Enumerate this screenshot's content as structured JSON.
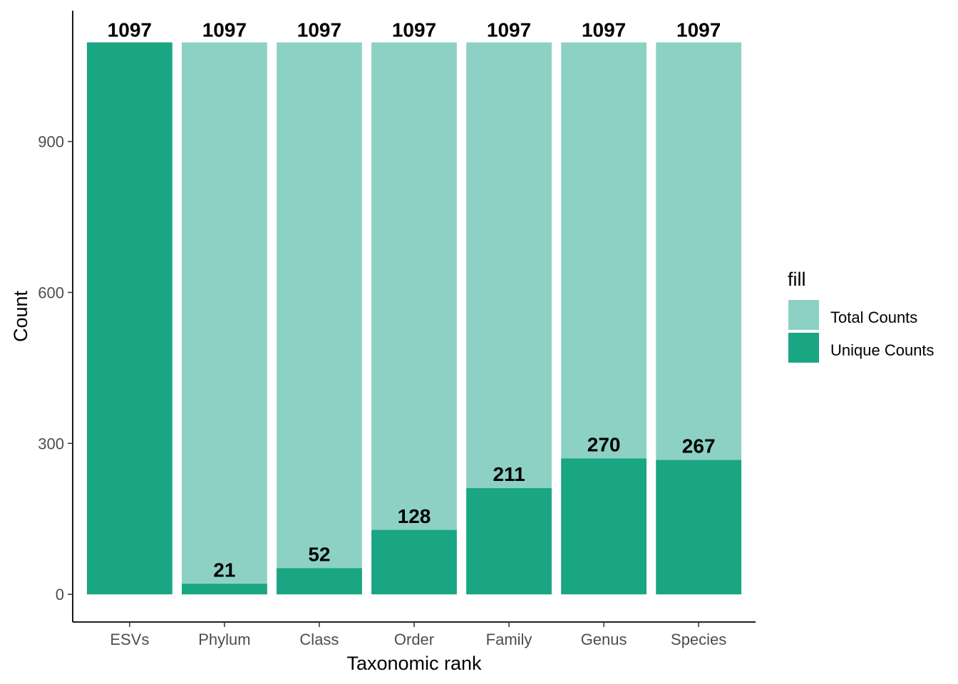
{
  "chart_data": {
    "type": "bar",
    "categories": [
      "ESVs",
      "Phylum",
      "Class",
      "Order",
      "Family",
      "Genus",
      "Species"
    ],
    "series": [
      {
        "name": "Total Counts",
        "values": [
          1097,
          1097,
          1097,
          1097,
          1097,
          1097,
          1097
        ]
      },
      {
        "name": "Unique Counts",
        "values": [
          1097,
          21,
          52,
          128,
          211,
          270,
          267
        ]
      }
    ],
    "total_labels": [
      "1097",
      "1097",
      "1097",
      "1097",
      "1097",
      "1097",
      "1097"
    ],
    "unique_labels": [
      "",
      "21",
      "52",
      "128",
      "211",
      "270",
      "267"
    ],
    "title": "",
    "xlabel": "Taxonomic rank",
    "ylabel": "Count",
    "ylim": [
      -55,
      1160
    ],
    "yticks": [
      0,
      300,
      600,
      900
    ],
    "ytick_labels": [
      "0",
      "300",
      "600",
      "900"
    ],
    "grid": false,
    "legend": {
      "title": "fill",
      "position": "right"
    },
    "colors": {
      "Total Counts": "#8dd1c4",
      "Unique Counts": "#1aa583"
    }
  }
}
